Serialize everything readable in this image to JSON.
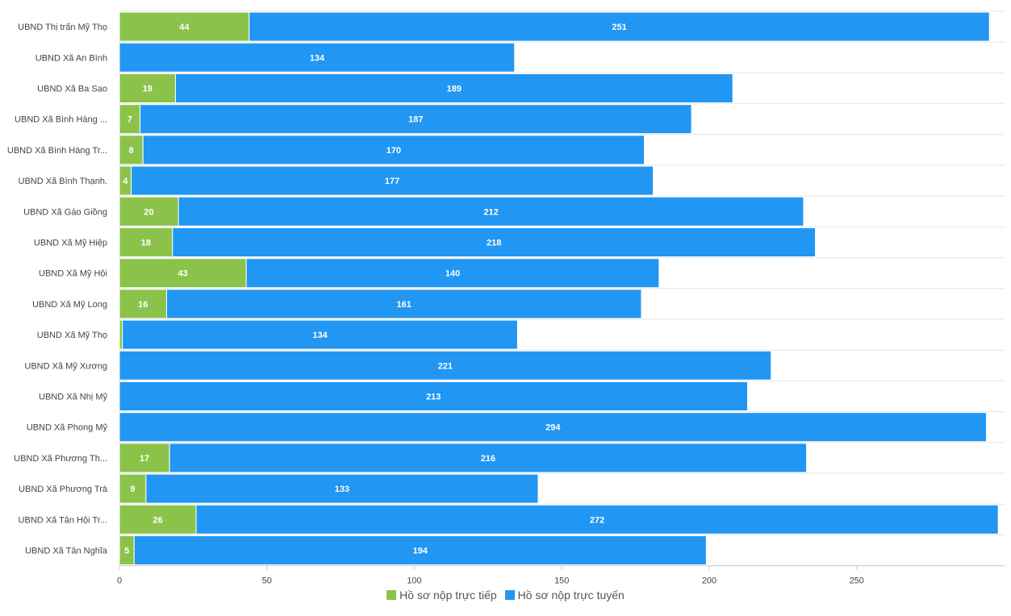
{
  "chart_data": {
    "type": "bar",
    "orientation": "horizontal",
    "stacked": true,
    "categories": [
      "UBND Thị trấn Mỹ Thọ",
      "UBND Xã An Bình",
      "UBND Xã Ba Sao",
      "UBND Xã Bình Hàng ...",
      "UBND Xã Bình Hàng Tr...",
      "UBND Xã Bình Thạnh.",
      "UBND Xã Gáo Giồng",
      "UBND Xã Mỹ Hiệp",
      "UBND Xã Mỹ Hội",
      "UBND Xã Mỹ Long",
      "UBND Xã Mỹ Thọ",
      "UBND Xã Mỹ Xương",
      "UBND Xã Nhị Mỹ",
      "UBND Xã Phong Mỹ",
      "UBND Xã Phương Th...",
      "UBND Xã Phương Trà",
      "UBND Xã Tân Hội Tr...",
      "UBND Xã Tân Nghĩa"
    ],
    "series": [
      {
        "name": "Hồ sơ nộp trực tiếp",
        "color": "#8bc34a",
        "values": [
          44,
          0,
          19,
          7,
          8,
          4,
          20,
          18,
          43,
          16,
          1,
          0,
          0,
          0,
          17,
          9,
          26,
          5
        ]
      },
      {
        "name": "Hồ sơ nộp trực tuyến",
        "color": "#2196f3",
        "values": [
          251,
          134,
          189,
          187,
          170,
          177,
          212,
          218,
          140,
          161,
          134,
          221,
          213,
          294,
          216,
          133,
          272,
          194
        ]
      }
    ],
    "xlim": [
      0,
      300
    ],
    "xticks": [
      0,
      50,
      100,
      150,
      200,
      250
    ],
    "grid": true,
    "legend_position": "bottom"
  }
}
